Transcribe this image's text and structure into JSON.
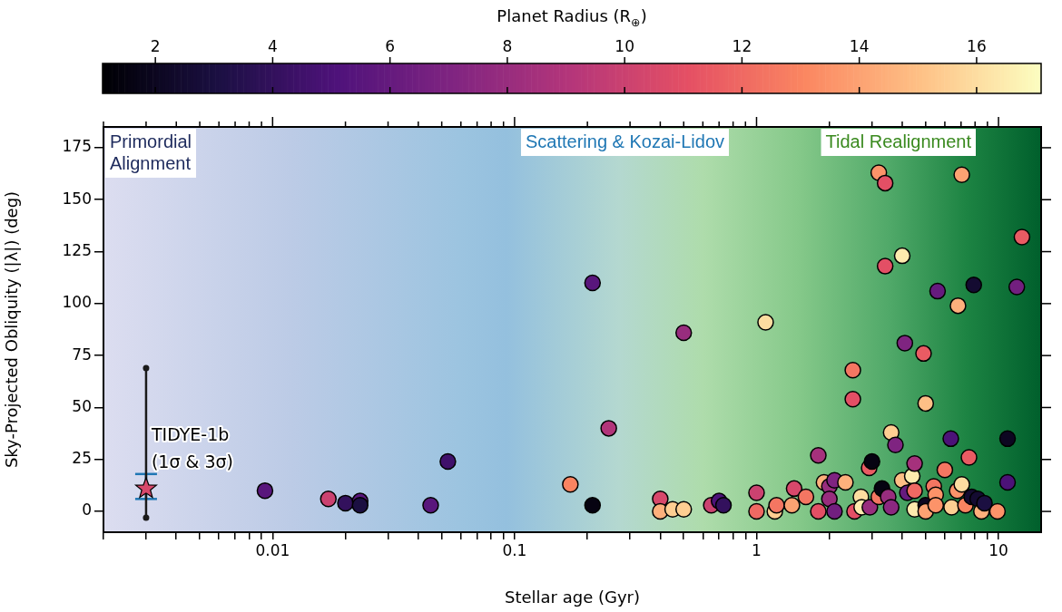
{
  "chart_data": {
    "type": "scatter",
    "xlabel": "Stellar age (Gyr)",
    "ylabel": "Sky-Projected Obliquity (|λ|) (deg)",
    "clabel": "Planet Radius (R$_{⊕}$)",
    "log": "x",
    "legend": false,
    "xlim": [
      0.002,
      15
    ],
    "ylim": [
      -10,
      185
    ],
    "xticks": [
      {
        "value": 0.002,
        "label": null
      },
      {
        "value": 0.003,
        "label": null
      },
      {
        "value": 0.004,
        "label": null
      },
      {
        "value": 0.005,
        "label": null
      },
      {
        "value": 0.006,
        "label": null
      },
      {
        "value": 0.007,
        "label": null
      },
      {
        "value": 0.008,
        "label": null
      },
      {
        "value": 0.009,
        "label": null
      },
      0.01,
      {
        "value": 0.02,
        "label": null
      },
      {
        "value": 0.03,
        "label": null
      },
      {
        "value": 0.04,
        "label": null
      },
      {
        "value": 0.05,
        "label": null
      },
      {
        "value": 0.06,
        "label": null
      },
      {
        "value": 0.07,
        "label": null
      },
      {
        "value": 0.08,
        "label": null
      },
      {
        "value": 0.09,
        "label": null
      },
      0.1,
      {
        "value": 0.2,
        "label": null
      },
      {
        "value": 0.3,
        "label": null
      },
      {
        "value": 0.4,
        "label": null
      },
      {
        "value": 0.5,
        "label": null
      },
      {
        "value": 0.6,
        "label": null
      },
      {
        "value": 0.7,
        "label": null
      },
      {
        "value": 0.8,
        "label": null
      },
      {
        "value": 0.9,
        "label": null
      },
      1,
      {
        "value": 2,
        "label": null
      },
      {
        "value": 3,
        "label": null
      },
      {
        "value": 4,
        "label": null
      },
      {
        "value": 5,
        "label": null
      },
      {
        "value": 6,
        "label": null
      },
      {
        "value": 7,
        "label": null
      },
      {
        "value": 8,
        "label": null
      },
      {
        "value": 9,
        "label": null
      },
      10
    ],
    "yticks": [
      0,
      25,
      50,
      75,
      100,
      125,
      150,
      175
    ],
    "clim": [
      1.1,
      17.1
    ],
    "cticks": [
      2,
      4,
      6,
      8,
      10,
      12,
      14,
      16
    ],
    "annotations": [
      "Primordial\nAlignment",
      "Scattering & Kozai-Lidov",
      "Tidal Realignment",
      {
        "text": "TIDYE-1b\n(1σ & 3σ)",
        "x": 0.003,
        "y": 11
      }
    ],
    "series": [
      {
        "marker": "circle",
        "x": [
          0.0093,
          0.017,
          0.02,
          0.023,
          0.023,
          0.045,
          0.053,
          0.17,
          0.21,
          0.21,
          0.245,
          0.4,
          0.4,
          0.45,
          0.5,
          0.5,
          0.65,
          0.7,
          0.73,
          1.0,
          1.0,
          1.09,
          1.19,
          1.21,
          1.4,
          1.43,
          1.6,
          1.8,
          1.8,
          1.9,
          2.0,
          2.0,
          2.1,
          2.1,
          2.33,
          2.5,
          2.5,
          2.54,
          2.7,
          2.72,
          2.92,
          2.94,
          3.0,
          3.2,
          3.2,
          3.3,
          3.4,
          3.4,
          3.5,
          3.6,
          3.6,
          3.75,
          4.0,
          4.0,
          4.1,
          4.2,
          4.4,
          4.5,
          4.5,
          4.5,
          4.9,
          5.0,
          5.0,
          5.0,
          5.4,
          5.5,
          5.5,
          5.6,
          6.0,
          6.35,
          6.4,
          6.75,
          6.8,
          7.05,
          7.05,
          7.3,
          7.55,
          7.75,
          7.9,
          8.2,
          8.5,
          8.75,
          9.9,
          10.9,
          10.9,
          11.9,
          12.5
        ],
        "values": [
          10,
          6,
          4,
          5,
          3,
          3,
          24,
          13,
          3,
          110,
          40,
          6,
          0,
          1,
          1,
          86,
          3,
          5,
          3,
          9,
          0,
          91,
          0,
          3,
          3,
          11,
          7,
          27,
          0,
          14,
          12,
          6,
          15,
          0,
          14,
          68,
          54,
          0,
          7,
          2,
          21,
          2,
          24,
          163,
          7,
          11,
          158,
          118,
          7,
          38,
          2,
          32,
          123,
          15,
          81,
          9,
          17,
          23,
          10,
          1,
          76,
          52,
          3,
          0,
          12,
          8,
          3,
          106,
          20,
          35,
          2,
          10,
          99,
          162,
          13,
          3,
          26,
          7,
          109,
          6,
          0,
          4,
          0,
          35,
          14,
          108,
          132
        ],
        "colors": [
          "#59167c",
          "#cb4270",
          "#33115d",
          "#59167c",
          "#1b0f41",
          "#59167c",
          "#40116b",
          "#fa8461",
          "#060311",
          "#59167c",
          "#b2357a",
          "#d7486b",
          "#fdb07c",
          "#fece92",
          "#fece92",
          "#982d7e",
          "#cb4270",
          "#4c1278",
          "#33115d",
          "#cb4270",
          "#ef6963",
          "#fddda0",
          "#fece92",
          "#f47662",
          "#fca272",
          "#d7486b",
          "#f47662",
          "#a5317c",
          "#e34f65",
          "#fdb07c",
          "#982d7e",
          "#982d7e",
          "#7f2481",
          "#721f7f",
          "#fdb07c",
          "#f47662",
          "#e34f65",
          "#e34f65",
          "#fddda0",
          "#fdebae",
          "#e95b63",
          "#982d7e",
          "#060311",
          "#fc9369",
          "#f47662",
          "#060311",
          "#e34f65",
          "#e34f65",
          "#982d7e",
          "#fece92",
          "#8b2880",
          "#7f2481",
          "#fdebae",
          "#febf86",
          "#7f2481",
          "#661b7e",
          "#fdebae",
          "#a5317c",
          "#ef6963",
          "#fdebae",
          "#e95b63",
          "#febf86",
          "#0d0721",
          "#fca272",
          "#f47662",
          "#fc9369",
          "#fc9369",
          "#661b7e",
          "#f47662",
          "#4c1278",
          "#fece92",
          "#fc9369",
          "#fdb07c",
          "#fca272",
          "#fddda0",
          "#fa8461",
          "#e95b63",
          "#140b31",
          "#140b31",
          "#140b31",
          "#fdb07c",
          "#1b0f41",
          "#fc9369",
          "#0d0721",
          "#4c1278",
          "#721f7f",
          "#e95b63"
        ]
      },
      {
        "type": "line",
        "marker": "circle",
        "color": "#1a1a1a",
        "x": [
          0.003,
          0.003
        ],
        "values": [
          -3,
          69
        ]
      },
      {
        "marker": "star",
        "color": "#d7486b",
        "x": [
          0.003
        ],
        "values": [
          11
        ],
        "errors": [
          [
            6,
            18
          ]
        ]
      }
    ]
  }
}
